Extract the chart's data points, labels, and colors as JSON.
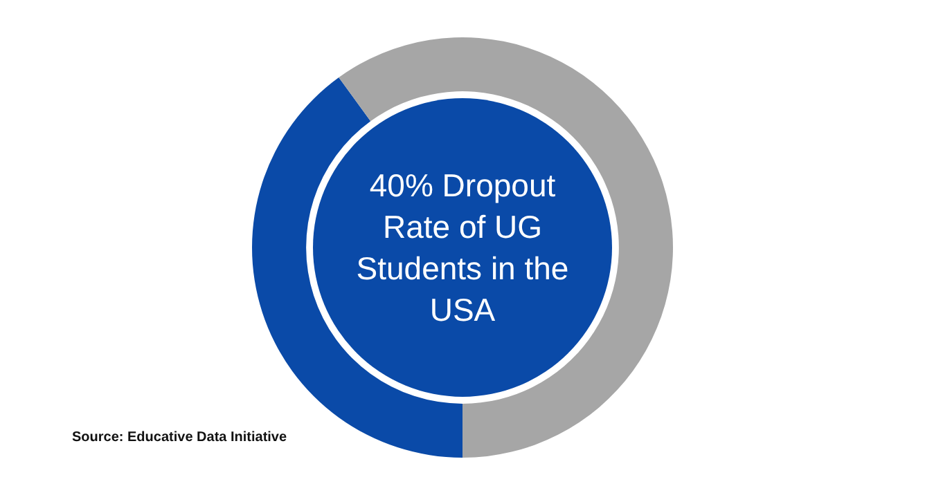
{
  "chart_data": {
    "type": "donut",
    "title": "40% Dropout Rate of UG Students in the USA",
    "categories": [
      null,
      null
    ],
    "values": [
      40,
      60
    ],
    "colors": [
      "#0a4aa8",
      "#a6a6a6"
    ],
    "annotations": [
      "Source: Educative Data Initiative"
    ]
  }
}
